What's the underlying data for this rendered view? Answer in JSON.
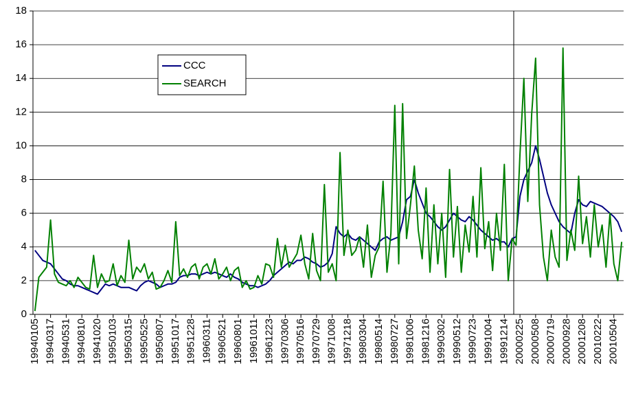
{
  "chart_data": {
    "type": "line",
    "categories": [
      "19940105",
      null,
      null,
      null,
      "19940317",
      null,
      null,
      null,
      "19940531",
      null,
      null,
      null,
      "19940810",
      null,
      null,
      null,
      "19941020",
      null,
      null,
      null,
      "19950103",
      null,
      null,
      null,
      "19950315",
      null,
      null,
      null,
      "19950525",
      null,
      null,
      null,
      "19950807",
      null,
      null,
      null,
      "19951017",
      null,
      null,
      null,
      "19951228",
      null,
      null,
      null,
      "19960311",
      null,
      null,
      null,
      "19960521",
      null,
      null,
      null,
      "19960801",
      null,
      null,
      null,
      "19961011",
      null,
      null,
      null,
      "19961223",
      null,
      null,
      null,
      "19970306",
      null,
      null,
      null,
      "19970516",
      null,
      null,
      null,
      "19970729",
      null,
      null,
      null,
      "19971008",
      null,
      null,
      null,
      "19971218",
      null,
      null,
      null,
      "19980304",
      null,
      null,
      null,
      "19980514",
      null,
      null,
      null,
      "19980727",
      null,
      null,
      null,
      "19981006",
      null,
      null,
      null,
      "19981216",
      null,
      null,
      null,
      "19990302",
      null,
      null,
      null,
      "19990512",
      null,
      null,
      null,
      "19990723",
      null,
      null,
      null,
      "19991004",
      null,
      null,
      null,
      "19991214",
      null,
      null,
      null,
      "20000225",
      null,
      null,
      null,
      "20000508",
      null,
      null,
      null,
      "20000719",
      null,
      null,
      null,
      "20000928",
      null,
      null,
      null,
      "20001208",
      null,
      null,
      null,
      "20010222",
      null,
      null,
      null,
      "20010504",
      null,
      null
    ],
    "series": [
      {
        "name": "CCC",
        "color": "#000080",
        "values": [
          3.8,
          3.5,
          3.2,
          3.1,
          3.0,
          2.7,
          2.4,
          2.1,
          2.0,
          1.8,
          1.7,
          1.7,
          1.6,
          1.5,
          1.4,
          1.3,
          1.2,
          1.5,
          1.8,
          1.7,
          1.8,
          1.7,
          1.6,
          1.6,
          1.6,
          1.5,
          1.4,
          1.7,
          1.9,
          2.0,
          1.9,
          1.8,
          1.6,
          1.7,
          1.8,
          1.8,
          1.9,
          2.2,
          2.3,
          2.3,
          2.4,
          2.4,
          2.3,
          2.4,
          2.5,
          2.4,
          2.5,
          2.4,
          2.3,
          2.2,
          2.4,
          2.2,
          2.1,
          1.9,
          1.8,
          1.7,
          1.7,
          1.6,
          1.7,
          1.8,
          2.0,
          2.3,
          2.5,
          2.7,
          2.9,
          3.1,
          3.0,
          3.2,
          3.2,
          3.4,
          3.3,
          3.1,
          3.0,
          2.8,
          2.9,
          3.1,
          3.6,
          5.2,
          4.8,
          4.6,
          4.8,
          4.5,
          4.4,
          4.6,
          4.4,
          4.2,
          4.0,
          3.8,
          4.3,
          4.5,
          4.6,
          4.4,
          4.5,
          4.6,
          5.5,
          6.8,
          7.0,
          8.0,
          7.2,
          6.6,
          6.0,
          5.8,
          5.5,
          5.2,
          5.0,
          5.2,
          5.6,
          6.0,
          5.8,
          5.6,
          5.5,
          5.8,
          5.6,
          5.3,
          5.0,
          4.8,
          4.6,
          4.4,
          4.5,
          4.3,
          4.3,
          4.0,
          4.5,
          4.6,
          7.0,
          8.0,
          8.5,
          9.0,
          10.0,
          9.2,
          8.2,
          7.2,
          6.5,
          6.0,
          5.5,
          5.2,
          5.0,
          4.8,
          6.0,
          6.8,
          6.5,
          6.4,
          6.7,
          6.6,
          6.5,
          6.4,
          6.2,
          6.0,
          5.8,
          5.5,
          4.9
        ]
      },
      {
        "name": "SEARCH",
        "color": "#008000",
        "values": [
          0.2,
          2.2,
          2.5,
          2.8,
          5.6,
          2.4,
          1.9,
          1.8,
          1.7,
          2.0,
          1.6,
          2.2,
          1.9,
          1.6,
          1.5,
          3.5,
          1.6,
          2.4,
          1.9,
          2.0,
          3.0,
          1.7,
          2.3,
          1.9,
          4.4,
          2.1,
          2.8,
          2.5,
          3.0,
          2.1,
          2.5,
          1.5,
          1.6,
          2.0,
          2.6,
          1.9,
          5.5,
          2.3,
          2.7,
          2.2,
          2.8,
          3.0,
          2.1,
          2.8,
          3.0,
          2.4,
          3.3,
          2.1,
          2.4,
          2.8,
          2.0,
          2.6,
          2.8,
          1.6,
          2.0,
          1.5,
          1.6,
          2.3,
          1.8,
          3.0,
          2.9,
          2.2,
          4.5,
          2.8,
          4.1,
          2.8,
          3.2,
          3.6,
          4.7,
          3.0,
          2.1,
          4.8,
          2.6,
          2.0,
          7.7,
          2.5,
          3.0,
          2.0,
          9.6,
          3.5,
          5.0,
          3.5,
          3.8,
          4.6,
          2.8,
          5.3,
          2.2,
          3.5,
          4.0,
          7.9,
          2.5,
          4.8,
          12.4,
          3.0,
          12.5,
          4.5,
          6.5,
          8.8,
          5.0,
          3.3,
          7.5,
          2.5,
          6.5,
          3.0,
          6.0,
          2.2,
          8.6,
          3.4,
          6.4,
          2.5,
          5.3,
          3.7,
          7.0,
          3.4,
          8.7,
          3.9,
          5.5,
          2.6,
          6.0,
          3.8,
          8.9,
          2.0,
          4.5,
          4.1,
          9.5,
          14.0,
          6.7,
          11.9,
          15.2,
          6.5,
          3.4,
          2.0,
          5.0,
          3.4,
          2.8,
          15.8,
          3.2,
          5.0,
          3.8,
          8.2,
          4.2,
          5.8,
          3.4,
          6.5,
          4.0,
          5.3,
          2.8,
          6.0,
          3.0,
          2.0,
          4.3
        ]
      }
    ],
    "ylim": [
      0,
      18
    ],
    "yticks": [
      0,
      2,
      4,
      6,
      8,
      10,
      12,
      14,
      16,
      18
    ],
    "grid": true
  }
}
